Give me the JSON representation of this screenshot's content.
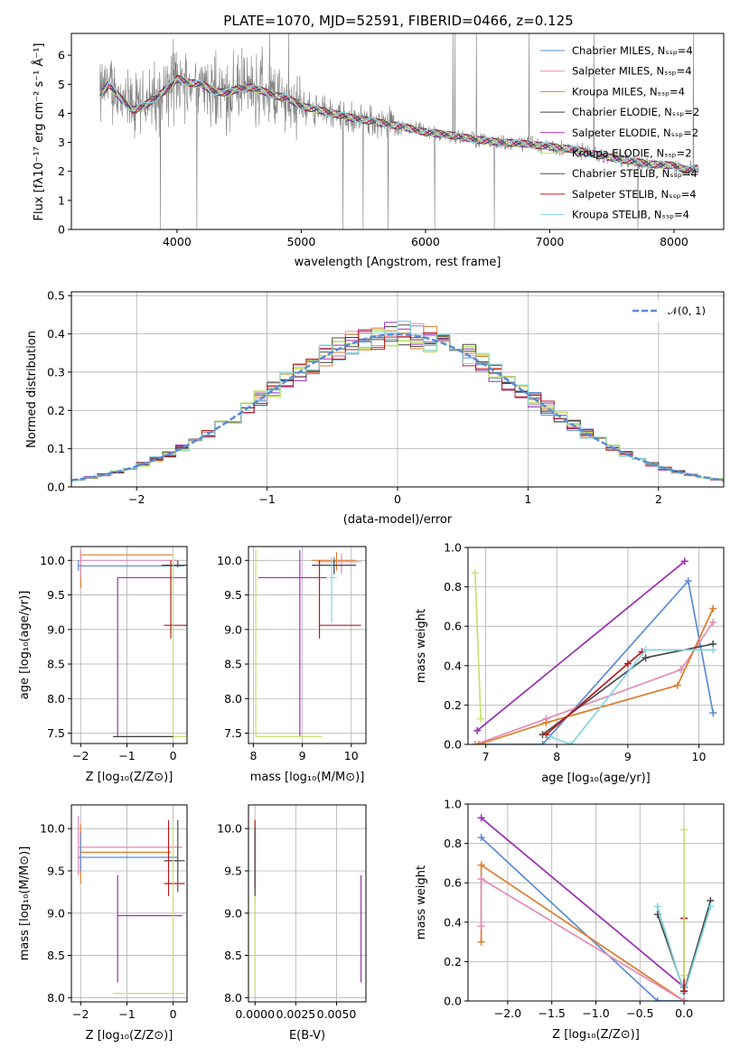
{
  "colors": {
    "chabrier_miles": "#5b8bd6",
    "salpeter_miles": "#e38cb8",
    "kroupa_miles": "#e07b2b",
    "chabrier_elodie": "#3d3d3d",
    "salpeter_elodie": "#9b2fb0",
    "kroupa_elodie": "#c5e270",
    "chabrier_stelib": "#4b4b4b",
    "salpeter_stelib": "#b8191c",
    "kroupa_stelib": "#86d5e0",
    "data_spectrum": "#808080",
    "normal_curve": "#5b8bd6",
    "grid": "#b0b0b0"
  },
  "chart_data": [
    {
      "id": "spectrum",
      "type": "line",
      "title": "PLATE=1070, MJD=52591, FIBERID=0466, z=0.125",
      "xlabel": "wavelength [Angstrom, rest frame]",
      "ylabel": "Flux [fλ10⁻¹⁷ erg cm⁻² s⁻¹ Å⁻¹]",
      "xlim": [
        3150,
        8400
      ],
      "ylim": [
        0,
        6.75
      ],
      "xticks": [
        "4000",
        "5000",
        "6000",
        "7000",
        "8000"
      ],
      "yticks": [
        "0",
        "1",
        "2",
        "3",
        "4",
        "5",
        "6"
      ],
      "grid": false,
      "legend": "top-right",
      "legend_entries": [
        "Chabrier MILES, Nₛₛₚ=4",
        "Salpeter MILES, Nₛₛₚ=4",
        "Kroupa MILES, Nₛₛₚ=4",
        "Chabrier ELODIE, Nₛₛₚ=2",
        "Salpeter ELODIE, Nₛₛₚ=2",
        "Kroupa ELODIE, Nₛₛₚ=2",
        "Chabrier STELIB, Nₛₛₚ=4",
        "Salpeter STELIB, Nₛₛₚ=4",
        "Kroupa STELIB, Nₛₛₚ=4"
      ],
      "model_continuum": {
        "x": [
          3380,
          3450,
          3550,
          3650,
          3750,
          3850,
          3950,
          4000,
          4100,
          4200,
          4300,
          4400,
          4500,
          4600,
          4700,
          4800,
          4900,
          5000,
          5200,
          5400,
          5600,
          5800,
          6000,
          6200,
          6400,
          6600,
          6800,
          7000,
          7200,
          7400,
          7600,
          7800,
          8000,
          8100,
          8200
        ],
        "y": [
          4.6,
          5.0,
          4.5,
          4.1,
          4.3,
          4.6,
          4.95,
          5.2,
          5.05,
          5.0,
          4.75,
          4.7,
          4.85,
          4.9,
          4.75,
          4.6,
          4.5,
          4.25,
          4.05,
          3.85,
          3.7,
          3.55,
          3.35,
          3.25,
          3.1,
          3.0,
          2.95,
          2.85,
          2.75,
          2.55,
          2.4,
          2.25,
          2.2,
          2.05,
          2.1
        ]
      },
      "data_range": [
        3380,
        8200
      ]
    },
    {
      "id": "residuals",
      "type": "line",
      "xlabel": "(data-model)/error",
      "ylabel": "Normed distribution",
      "xlim": [
        -2.5,
        2.5
      ],
      "ylim": [
        0,
        0.51
      ],
      "xticks": [
        "−2",
        "−1",
        "0",
        "1",
        "2"
      ],
      "yticks": [
        "0.0",
        "0.1",
        "0.2",
        "0.3",
        "0.4",
        "0.5"
      ],
      "grid": true,
      "legend": "top-right",
      "legend_entries": [
        "𝒩(0, 1)"
      ],
      "bin_width": 0.1
    },
    {
      "id": "age-vs-metallicity",
      "type": "scatter",
      "xlabel": "Z [log₁₀(Z/Z⊙)]",
      "ylabel": "age  [log₁₀(age/yr)]",
      "xlim": [
        -2.2,
        0.3
      ],
      "ylim": [
        7.35,
        10.2
      ],
      "xticks": [
        "−2",
        "−1",
        "0"
      ],
      "yticks": [
        "7.5",
        "8.0",
        "8.5",
        "9.0",
        "9.5",
        "10.0"
      ],
      "grid": true,
      "bars": [
        {
          "series": "kroupa_miles",
          "x": [
            -2.0,
            0.0
          ],
          "y": 10.08,
          "ye": [
            9.6,
            10.1
          ],
          "xe_at": -2.0
        },
        {
          "series": "salpeter_miles",
          "x": [
            -2.0,
            0.1
          ],
          "y": 10.0,
          "ye": [
            9.75,
            10.15
          ],
          "xe_at": -2.0
        },
        {
          "series": "chabrier_miles",
          "x": [
            -2.05,
            0.25
          ],
          "y": 9.92,
          "ye": [
            9.85,
            10.0
          ],
          "xe_at": -2.05
        },
        {
          "series": "chabrier_stelib",
          "x": [
            -0.25,
            0.3
          ],
          "y": 9.93,
          "ye": [
            9.9,
            10.0
          ],
          "xe_at": 0.1
        },
        {
          "series": "salpeter_elodie",
          "x": [
            -1.2,
            0.3
          ],
          "y": 9.75,
          "ye": [
            7.45,
            9.75
          ],
          "xe_at": -1.2
        },
        {
          "series": "salpeter_stelib",
          "x": [
            -0.2,
            0.3
          ],
          "y": 9.06,
          "ye": [
            8.87,
            10.0
          ],
          "xe_at": -0.05
        },
        {
          "series": "kroupa_elodie",
          "x": [
            -1.25,
            0.3
          ],
          "y": 7.45,
          "ye": [
            7.45,
            10.1
          ],
          "xe_at": 0.0
        },
        {
          "series": "chabrier_elodie",
          "x": [
            -1.3,
            0.0
          ],
          "y": 7.45,
          "ye": [
            7.45,
            7.45
          ],
          "xe_at": 0.0
        }
      ]
    },
    {
      "id": "age-vs-mass",
      "type": "scatter",
      "xlabel": "mass [log₁₀(M/M⊙)]",
      "ylabel": "",
      "xlim": [
        7.9,
        10.3
      ],
      "ylim": [
        7.35,
        10.2
      ],
      "xticks": [
        "8",
        "9",
        "10"
      ],
      "yticks": [
        "7.5",
        "8.0",
        "8.5",
        "9.0",
        "9.5",
        "10.0"
      ],
      "grid": true,
      "bars": [
        {
          "series": "kroupa_miles",
          "x": [
            9.2,
            10.1
          ],
          "y": 10.0,
          "ye": [
            9.85,
            10.12
          ],
          "xe_at": 9.7
        },
        {
          "series": "salpeter_miles",
          "x": [
            9.3,
            10.2
          ],
          "y": 9.98,
          "ye": [
            9.8,
            10.1
          ],
          "xe_at": 9.8
        },
        {
          "series": "chabrier_miles",
          "x": [
            9.2,
            10.1
          ],
          "y": 9.93,
          "ye": [
            9.8,
            10.05
          ],
          "xe_at": 9.65
        },
        {
          "series": "chabrier_stelib",
          "x": [
            9.2,
            10.1
          ],
          "y": 9.93,
          "ye": [
            9.8,
            10.0
          ],
          "xe_at": 9.65
        },
        {
          "series": "kroupa_stelib",
          "x": [
            9.55,
            9.7
          ],
          "y": 9.75,
          "ye": [
            9.1,
            10.05
          ],
          "xe_at": 9.6
        },
        {
          "series": "salpeter_elodie",
          "x": [
            8.1,
            9.5
          ],
          "y": 9.75,
          "ye": [
            7.45,
            10.15
          ],
          "xe_at": 8.95
        },
        {
          "series": "salpeter_stelib",
          "x": [
            9.35,
            10.2
          ],
          "y": 9.06,
          "ye": [
            8.87,
            10.0
          ],
          "xe_at": 9.35
        },
        {
          "series": "kroupa_elodie",
          "x": [
            8.05,
            9.4
          ],
          "y": 7.45,
          "ye": [
            7.45,
            10.15
          ],
          "xe_at": 8.05
        }
      ]
    },
    {
      "id": "mass-weight-vs-age",
      "type": "line",
      "xlabel": "age  [log₁₀(age/yr)]",
      "ylabel": "mass weight",
      "xlim": [
        6.75,
        10.35
      ],
      "ylim": [
        0,
        1.0
      ],
      "xticks": [
        "7",
        "8",
        "9",
        "10"
      ],
      "yticks": [
        "0.0",
        "0.2",
        "0.4",
        "0.6",
        "0.8",
        "1.0"
      ],
      "grid": true,
      "series": [
        {
          "key": "salpeter_elodie",
          "x": [
            6.88,
            9.8
          ],
          "y": [
            0.07,
            0.93
          ]
        },
        {
          "key": "kroupa_elodie",
          "x": [
            6.85,
            6.93
          ],
          "y": [
            0.87,
            0.13
          ]
        },
        {
          "key": "chabrier_miles",
          "x": [
            6.85,
            7.8,
            9.85,
            10.2
          ],
          "y": [
            0.0,
            0.0,
            0.83,
            0.16
          ]
        },
        {
          "key": "salpeter_miles",
          "x": [
            6.85,
            7.85,
            9.75,
            10.2
          ],
          "y": [
            0.0,
            0.13,
            0.38,
            0.62
          ]
        },
        {
          "key": "kroupa_miles",
          "x": [
            6.9,
            7.85,
            9.7,
            10.2
          ],
          "y": [
            0.0,
            0.11,
            0.3,
            0.69
          ]
        },
        {
          "key": "chabrier_stelib",
          "x": [
            7.8,
            9.25,
            10.2
          ],
          "y": [
            0.05,
            0.44,
            0.51
          ]
        },
        {
          "key": "salpeter_stelib",
          "x": [
            7.85,
            9.0,
            9.2
          ],
          "y": [
            0.05,
            0.41,
            0.47
          ]
        },
        {
          "key": "kroupa_stelib",
          "x": [
            7.9,
            8.2,
            9.25,
            10.2
          ],
          "y": [
            0.04,
            0.0,
            0.48,
            0.48
          ]
        }
      ]
    },
    {
      "id": "mass-vs-metallicity",
      "type": "scatter",
      "xlabel": "Z [log₁₀(Z/Z⊙)]",
      "ylabel": "mass [log₁₀(M/M⊙)]",
      "xlim": [
        -2.2,
        0.3
      ],
      "ylim": [
        7.95,
        10.28
      ],
      "xticks": [
        "−2",
        "−1",
        "0"
      ],
      "yticks": [
        "8.0",
        "8.5",
        "9.0",
        "9.5",
        "10.0"
      ],
      "grid": true,
      "bars": [
        {
          "series": "salpeter_miles",
          "x": [
            -2.05,
            0.2
          ],
          "y": 9.78,
          "ye": [
            9.45,
            10.15
          ],
          "xe_at": -2.05
        },
        {
          "series": "kroupa_miles",
          "x": [
            -2.0,
            -0.05
          ],
          "y": 9.72,
          "ye": [
            9.35,
            10.05
          ],
          "xe_at": -2.0
        },
        {
          "series": "chabrier_miles",
          "x": [
            -2.05,
            0.1
          ],
          "y": 9.66,
          "ye": [
            9.5,
            9.95
          ],
          "xe_at": -2.0
        },
        {
          "series": "chabrier_stelib",
          "x": [
            -0.2,
            0.25
          ],
          "y": 9.62,
          "ye": [
            9.25,
            10.1
          ],
          "xe_at": 0.1
        },
        {
          "series": "salpeter_stelib",
          "x": [
            -0.2,
            0.25
          ],
          "y": 9.35,
          "ye": [
            9.2,
            10.1
          ],
          "xe_at": -0.1
        },
        {
          "series": "salpeter_elodie",
          "x": [
            -1.2,
            0.2
          ],
          "y": 8.97,
          "ye": [
            8.18,
            9.45
          ],
          "xe_at": -1.2
        },
        {
          "series": "kroupa_elodie",
          "x": [
            -1.3,
            0.25
          ],
          "y": 8.05,
          "ye": [
            8.05,
            10.05
          ],
          "xe_at": 0.0
        }
      ]
    },
    {
      "id": "mass-vs-reddening",
      "type": "scatter",
      "xlabel": "E(B-V)",
      "ylabel": "",
      "xlim": [
        -0.0004,
        0.0068
      ],
      "ylim": [
        7.95,
        10.28
      ],
      "xticks": [
        "0.0000",
        "0.0025",
        "0.0050"
      ],
      "yticks": [
        "8.0",
        "8.5",
        "9.0",
        "9.5",
        "10.0"
      ],
      "grid": true,
      "bars": [
        {
          "series": "kroupa_elodie",
          "x": [
            0.0,
            0.0
          ],
          "y": 9.6,
          "ye": [
            8.05,
            10.1
          ],
          "xe_at": 0.0
        },
        {
          "series": "salpeter_stelib",
          "x": [
            0.0,
            0.0
          ],
          "y": 9.8,
          "ye": [
            9.3,
            10.1
          ],
          "xe_at": 0.0
        },
        {
          "series": "chabrier_stelib",
          "x": [
            0.0,
            0.0
          ],
          "y": 9.6,
          "ye": [
            9.2,
            10.0
          ],
          "xe_at": 0.0
        },
        {
          "series": "salpeter_elodie",
          "x": [
            0.0065,
            0.0065
          ],
          "y": 8.8,
          "ye": [
            8.18,
            9.45
          ],
          "xe_at": 0.0065
        }
      ]
    },
    {
      "id": "mass-weight-vs-metallicity",
      "type": "line",
      "xlabel": "Z [log₁₀(Z/Z⊙)]",
      "ylabel": "mass weight",
      "xlim": [
        -2.45,
        0.45
      ],
      "ylim": [
        0,
        1.0
      ],
      "xticks": [
        "−2.0",
        "−1.5",
        "−1.0",
        "−0.5",
        "0.0"
      ],
      "yticks": [
        "0.0",
        "0.2",
        "0.4",
        "0.6",
        "0.8",
        "1.0"
      ],
      "grid": true,
      "series": [
        {
          "key": "salpeter_elodie",
          "x": [
            -2.3,
            0.0
          ],
          "y": [
            0.93,
            0.07
          ]
        },
        {
          "key": "chabrier_miles",
          "x": [
            -2.3,
            -0.3,
            0.0
          ],
          "y": [
            0.83,
            0.0,
            0.0
          ]
        },
        {
          "key": "kroupa_miles",
          "x": [
            -2.3,
            -2.3,
            0.0
          ],
          "y": [
            0.3,
            0.69,
            0.0
          ]
        },
        {
          "key": "salpeter_miles",
          "x": [
            -2.3,
            -2.3,
            0.0
          ],
          "y": [
            0.38,
            0.62,
            0.0
          ]
        },
        {
          "key": "chabrier_stelib",
          "x": [
            -0.3,
            0.0,
            0.3
          ],
          "y": [
            0.44,
            0.05,
            0.51
          ]
        },
        {
          "key": "kroupa_stelib",
          "x": [
            -0.3,
            0.0,
            0.3
          ],
          "y": [
            0.48,
            0.04,
            0.48
          ]
        },
        {
          "key": "salpeter_stelib",
          "x": [
            0.0,
            0.0
          ],
          "y": [
            0.05,
            0.42
          ]
        },
        {
          "key": "kroupa_elodie",
          "x": [
            0.0,
            0.0
          ],
          "y": [
            0.13,
            0.87
          ]
        }
      ]
    }
  ]
}
